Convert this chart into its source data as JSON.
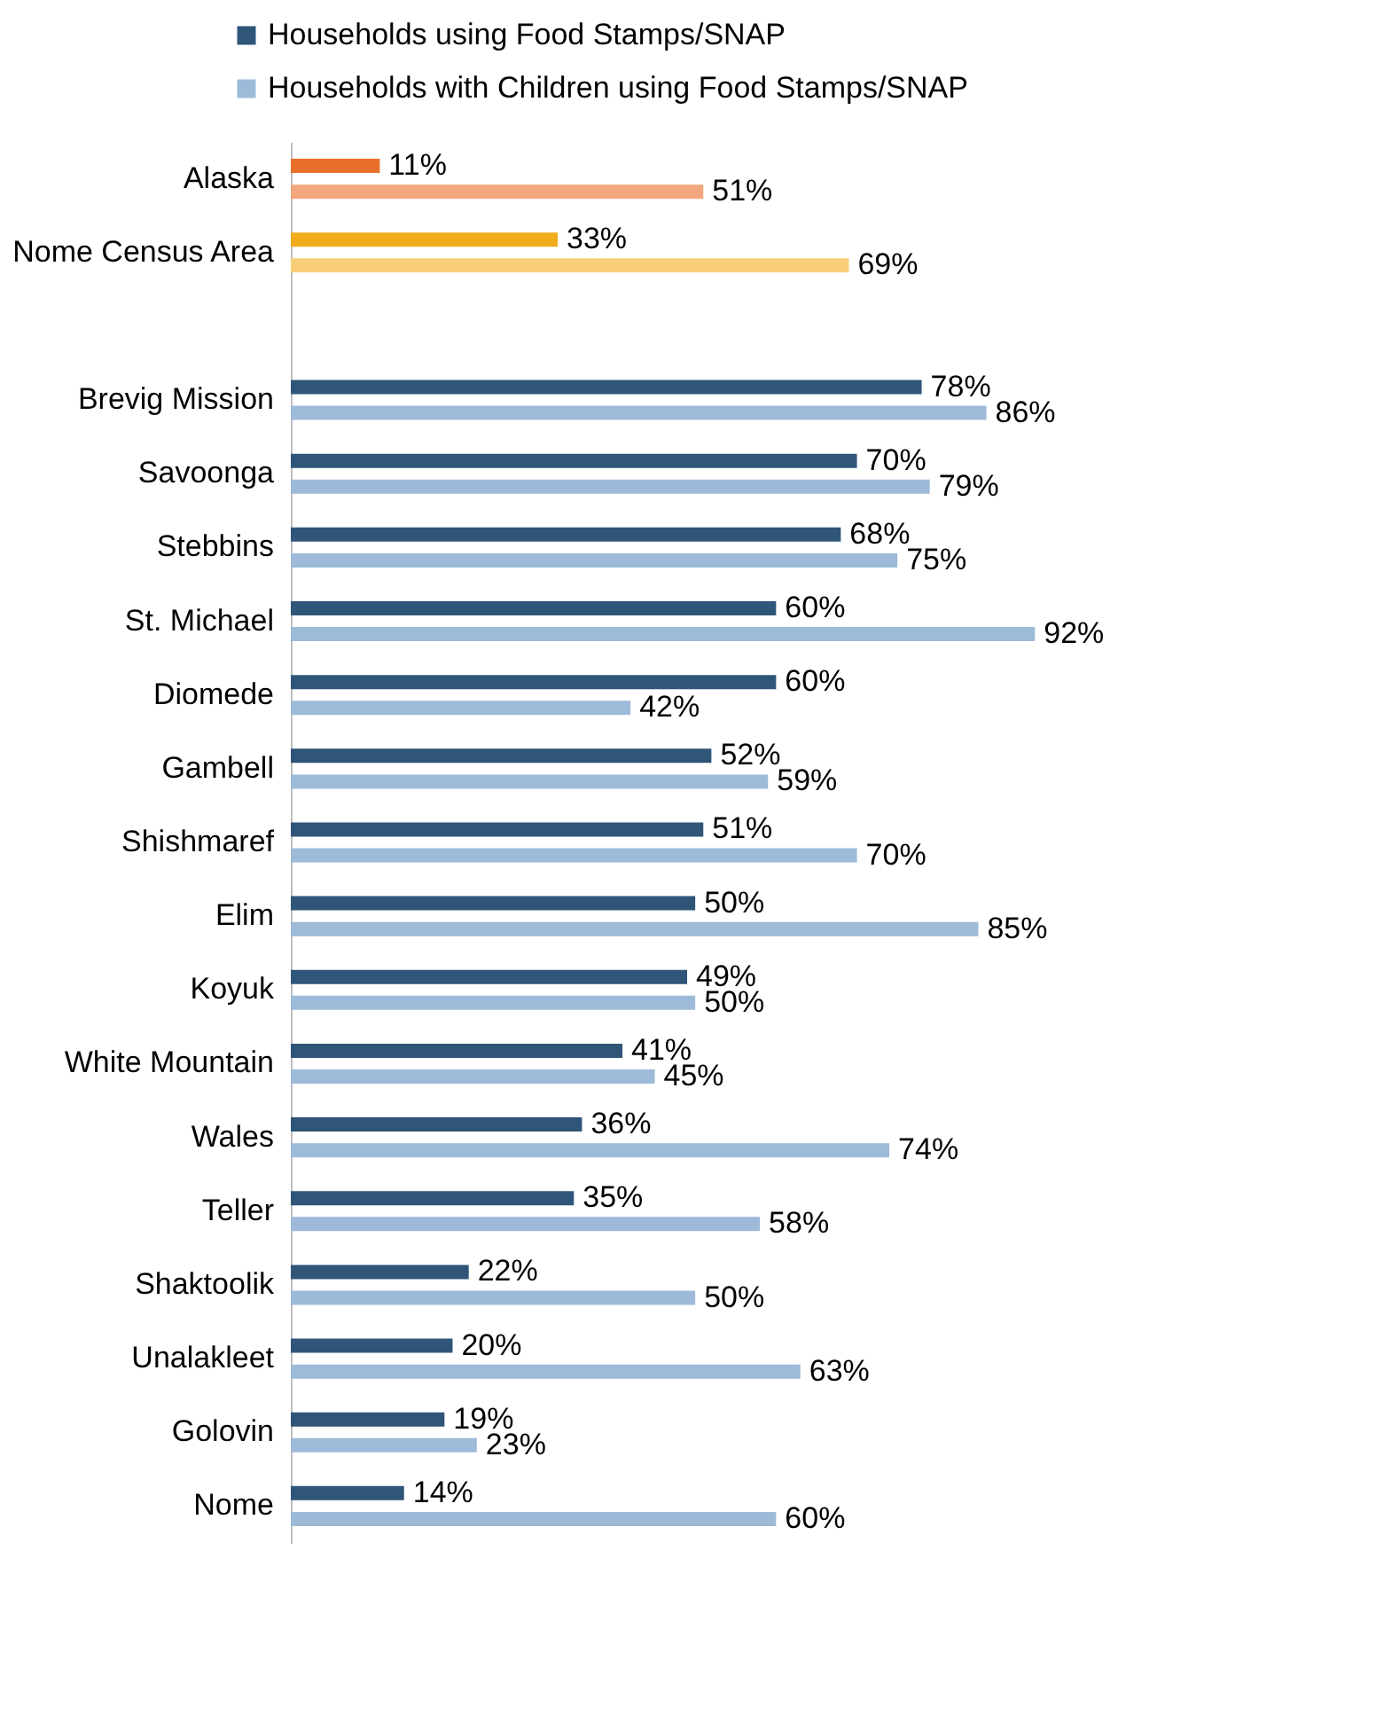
{
  "chart_data": {
    "type": "bar",
    "orientation": "horizontal",
    "legend": "top",
    "categories": [
      "Alaska",
      "Nome Census Area",
      null,
      "Brevig Mission",
      "Savoonga",
      "Stebbins",
      "St. Michael",
      "Diomede",
      "Gambell",
      "Shishmaref",
      "Elim",
      "Koyuk",
      "White Mountain",
      "Wales",
      "Teller",
      "Shaktoolik",
      "Unalakleet",
      "Golovin",
      "Nome"
    ],
    "series": [
      {
        "name": "Households using Food Stamps/SNAP",
        "color": "#2f5579",
        "colors": [
          "#e8702a",
          "#f0ac1c",
          null,
          "#2f5579",
          "#2f5579",
          "#2f5579",
          "#2f5579",
          "#2f5579",
          "#2f5579",
          "#2f5579",
          "#2f5579",
          "#2f5579",
          "#2f5579",
          "#2f5579",
          "#2f5579",
          "#2f5579",
          "#2f5579",
          "#2f5579",
          "#2f5579"
        ],
        "values": [
          11,
          33,
          null,
          78,
          70,
          68,
          60,
          60,
          52,
          51,
          50,
          49,
          41,
          36,
          35,
          22,
          20,
          19,
          14
        ],
        "value_labels": [
          "11%",
          "33%",
          null,
          "78%",
          "70%",
          "68%",
          "60%",
          "60%",
          "52%",
          "51%",
          "50%",
          "49%",
          "41%",
          "36%",
          "35%",
          "22%",
          "20%",
          "19%",
          "14%"
        ]
      },
      {
        "name": "Households with Children using Food Stamps/SNAP",
        "color": "#9dbad9",
        "colors": [
          "#f2a77f",
          "#f8cf78",
          null,
          "#9dbad9",
          "#9dbad9",
          "#9dbad9",
          "#9dbad9",
          "#9dbad9",
          "#9dbad9",
          "#9dbad9",
          "#9dbad9",
          "#9dbad9",
          "#9dbad9",
          "#9dbad9",
          "#9dbad9",
          "#9dbad9",
          "#9dbad9",
          "#9dbad9",
          "#9dbad9"
        ],
        "values": [
          51,
          69,
          null,
          86,
          79,
          75,
          92,
          42,
          59,
          70,
          85,
          50,
          45,
          74,
          58,
          50,
          63,
          23,
          60
        ],
        "value_labels": [
          "51%",
          "69%",
          null,
          "86%",
          "79%",
          "75%",
          "92%",
          "42%",
          "59%",
          "70%",
          "85%",
          "50%",
          "45%",
          "74%",
          "58%",
          "50%",
          "63%",
          "23%",
          "60%"
        ]
      }
    ]
  }
}
